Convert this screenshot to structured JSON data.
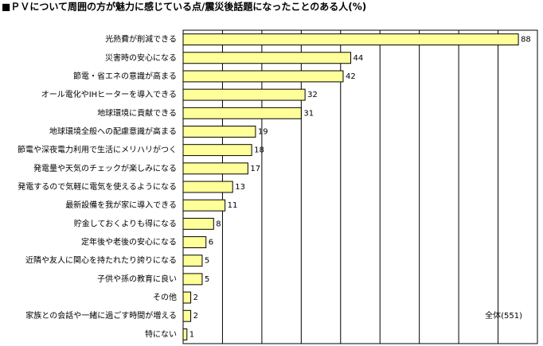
{
  "chart_data": {
    "type": "bar",
    "orientation": "horizontal",
    "title": "■ＰＶについて周囲の方が魅力に感じている点/震災後話題になったことのある人(%)",
    "annotation": "全体(551)",
    "categories": [
      "光熱費が削減できる",
      "災害時の安心になる",
      "節電・省エネの意識が高まる",
      "オール電化やIHヒーターを導入できる",
      "地球環境に貢献できる",
      "地球環境全般への配慮意識が高まる",
      "節電や深夜電力利用で生活にメリハリがつく",
      "発電量や天気のチェックが楽しみになる",
      "発電するので気軽に電気を使えるようになる",
      "最新設備を我が家に導入できる",
      "貯金しておくよりも得になる",
      "定年後や老後の安心になる",
      "近隣や友人に関心を持たれたり誇りになる",
      "子供や孫の教育に良い",
      "その他",
      "家族との会話や一緒に過ごす時間が増える",
      "特にない"
    ],
    "values": [
      88,
      44,
      42,
      32,
      31,
      19,
      18,
      17,
      13,
      11,
      8,
      6,
      5,
      5,
      2,
      2,
      1
    ],
    "color": "#ffff99",
    "xlim": [
      0,
      93
    ],
    "grid": true
  }
}
